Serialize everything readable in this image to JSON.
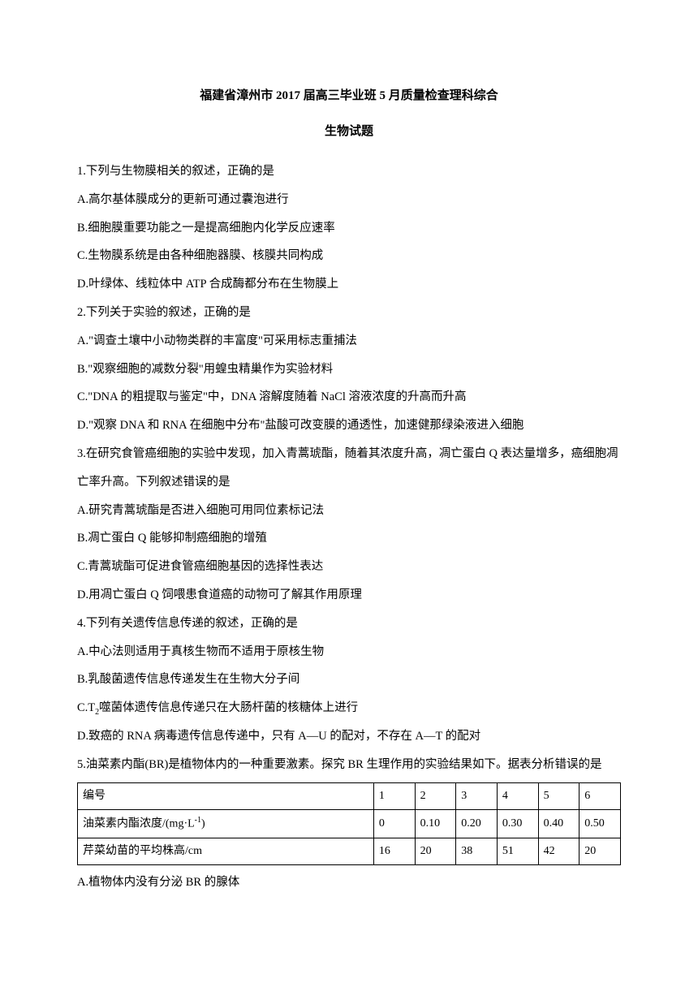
{
  "title": {
    "main": "福建省漳州市 2017 届高三毕业班 5 月质量检查理科综合",
    "sub": "生物试题"
  },
  "lines": [
    "1.下列与生物膜相关的叙述，正确的是",
    "A.高尔基体膜成分的更新可通过囊泡进行",
    "B.细胞膜重要功能之一是提高细胞内化学反应速率",
    "C.生物膜系统是由各种细胞器膜、核膜共同构成",
    "D.叶绿体、线粒体中 ATP 合成酶都分布在生物膜上",
    "2.下列关于实验的叙述，正确的是",
    "A.\"调查土壤中小动物类群的丰富度\"可采用标志重捕法",
    "B.\"观察细胞的减数分裂\"用蝗虫精巢作为实验材料",
    "C.\"DNA 的粗提取与鉴定\"中，DNA 溶解度随着 NaCl 溶液浓度的升高而升高",
    "D.\"观察 DNA 和 RNA 在细胞中分布\"盐酸可改变膜的通透性，加速健那绿染液进入细胞",
    "3.在研究食管癌细胞的实验中发现，加入青蒿琥酯，随着其浓度升高，凋亡蛋白 Q 表达量增多，癌细胞凋亡率升高。下列叙述错误的是",
    "A.研究青蒿琥酯是否进入细胞可用同位素标记法",
    "B.凋亡蛋白 Q 能够抑制癌细胞的增殖",
    "C.青蒿琥酯可促进食管癌细胞基因的选择性表达",
    "D.用凋亡蛋白 Q 饲喂患食道癌的动物可了解其作用原理",
    "4.下列有关遗传信息传递的叙述，正确的是",
    "A.中心法则适用于真核生物而不适用于原核生物",
    "B.乳酸菌遗传信息传递发生在生物大分子间"
  ],
  "lineT2": {
    "prefix": "C.T",
    "sub": "2",
    "suffix": "噬菌体遗传信息传递只在大肠杆菌的核糖体上进行"
  },
  "lines2": [
    "D.致癌的 RNA 病毒遗传信息传递中，只有 A—U 的配对，不存在 A—T 的配对",
    "5.油菜素内酯(BR)是植物体内的一种重要激素。探究 BR 生理作用的实验结果如下。据表分析错误的是"
  ],
  "table": {
    "rows": [
      [
        "编号",
        "1",
        "2",
        "3",
        "4",
        "5",
        "6"
      ],
      [
        "_UNIT_",
        "0",
        "0.10",
        "0.20",
        "0.30",
        "0.40",
        "0.50"
      ],
      [
        "芹菜幼苗的平均株高/cm",
        "16",
        "20",
        "38",
        "51",
        "42",
        "20"
      ]
    ],
    "unitLabel": {
      "prefix": "油菜素内酯浓度/(mg·L",
      "sup": "-1",
      "suffix": ")"
    }
  },
  "afterTable": "A.植物体内没有分泌 BR 的腺体"
}
